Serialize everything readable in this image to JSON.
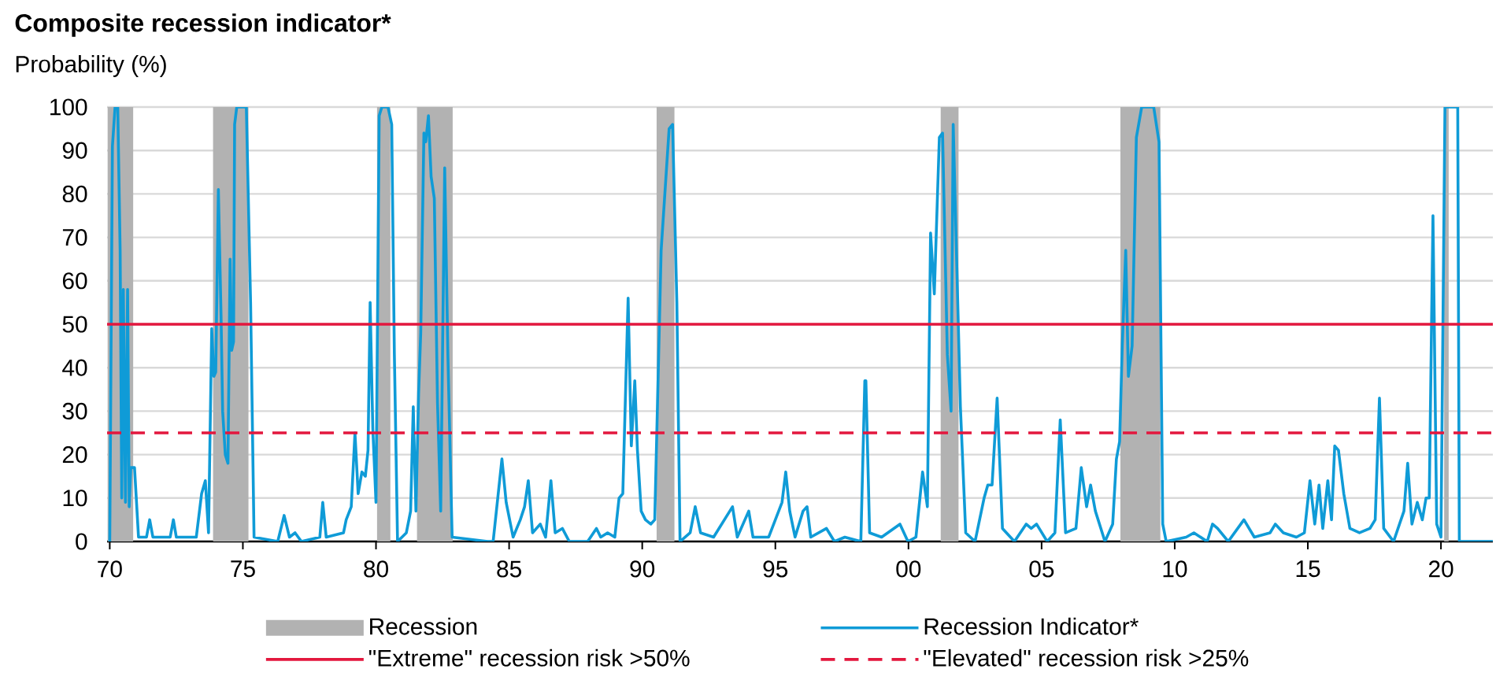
{
  "chart_data": {
    "type": "line",
    "title": "Composite recession indicator*",
    "ylabel": "Probability (%)",
    "xlim": [
      1969.9,
      2021.95
    ],
    "xticks": [
      {
        "value": 1970,
        "label": "70"
      },
      {
        "value": 1975,
        "label": "75"
      },
      {
        "value": 1980,
        "label": "80"
      },
      {
        "value": 1985,
        "label": "85"
      },
      {
        "value": 1990,
        "label": "90"
      },
      {
        "value": 1995,
        "label": "95"
      },
      {
        "value": 2000,
        "label": "00"
      },
      {
        "value": 2005,
        "label": "05"
      },
      {
        "value": 2010,
        "label": "10"
      },
      {
        "value": 2015,
        "label": "15"
      },
      {
        "value": 2020,
        "label": "20"
      }
    ],
    "ylim": [
      0,
      100
    ],
    "yticks": [
      0,
      10,
      20,
      30,
      40,
      50,
      60,
      70,
      80,
      90,
      100
    ],
    "grid": "y",
    "legend": "bottom",
    "bands": [
      {
        "axis": "x",
        "from": 1969.92,
        "to": 1970.88,
        "label": "Recession",
        "color": "#b2b2b2"
      },
      {
        "axis": "x",
        "from": 1973.88,
        "to": 1975.21,
        "color": "#b2b2b2"
      },
      {
        "axis": "x",
        "from": 1980.04,
        "to": 1980.54,
        "color": "#b2b2b2"
      },
      {
        "axis": "x",
        "from": 1981.54,
        "to": 1982.88,
        "color": "#b2b2b2"
      },
      {
        "axis": "x",
        "from": 1990.54,
        "to": 1991.21,
        "color": "#b2b2b2"
      },
      {
        "axis": "x",
        "from": 2001.21,
        "to": 2001.88,
        "color": "#b2b2b2"
      },
      {
        "axis": "x",
        "from": 2007.96,
        "to": 2009.46,
        "color": "#b2b2b2"
      },
      {
        "axis": "x",
        "from": 2020.12,
        "to": 2020.29,
        "color": "#b2b2b2"
      }
    ],
    "series": [
      {
        "name": "Recession Indicator*",
        "color": "#0f9bd7",
        "x": [
          1970.0,
          1970.1,
          1970.2,
          1970.3,
          1970.39,
          1970.45,
          1970.51,
          1970.59,
          1970.67,
          1970.73,
          1970.79,
          1970.93,
          1971.08,
          1971.38,
          1971.5,
          1971.62,
          1972.27,
          1972.39,
          1972.5,
          1973.25,
          1973.45,
          1973.59,
          1973.71,
          1973.83,
          1973.91,
          1973.98,
          1974.08,
          1974.18,
          1974.24,
          1974.34,
          1974.44,
          1974.52,
          1974.58,
          1974.65,
          1974.69,
          1974.77,
          1975.13,
          1975.29,
          1975.42,
          1976.31,
          1976.55,
          1976.75,
          1976.96,
          1977.2,
          1977.89,
          1978.0,
          1978.13,
          1978.78,
          1978.88,
          1979.07,
          1979.21,
          1979.33,
          1979.47,
          1979.6,
          1979.7,
          1979.78,
          1979.88,
          1980.0,
          1980.12,
          1980.22,
          1980.45,
          1980.59,
          1980.69,
          1980.81,
          1981.14,
          1981.3,
          1981.4,
          1981.5,
          1981.6,
          1981.68,
          1981.8,
          1981.87,
          1981.97,
          1982.07,
          1982.19,
          1982.31,
          1982.43,
          1982.58,
          1982.7,
          1982.86,
          1984.2,
          1984.4,
          1984.73,
          1984.89,
          1985.15,
          1985.42,
          1985.58,
          1985.72,
          1985.88,
          1986.17,
          1986.37,
          1986.57,
          1986.73,
          1987.0,
          1987.26,
          1987.95,
          1988.28,
          1988.44,
          1988.7,
          1988.97,
          1989.13,
          1989.27,
          1989.47,
          1989.59,
          1989.72,
          1989.82,
          1989.96,
          1990.12,
          1990.32,
          1990.47,
          1990.71,
          1991.01,
          1991.14,
          1991.3,
          1991.42,
          1991.8,
          1991.99,
          1992.19,
          1992.68,
          1993.39,
          1993.57,
          1994.0,
          1994.16,
          1994.75,
          1995.25,
          1995.39,
          1995.54,
          1995.74,
          1996.04,
          1996.19,
          1996.33,
          1996.92,
          1997.22,
          1997.61,
          1998.21,
          1998.36,
          1998.4,
          1998.54,
          1998.99,
          1999.68,
          1999.98,
          2000.28,
          2000.53,
          2000.71,
          2000.83,
          2000.97,
          2001.16,
          2001.28,
          2001.46,
          2001.6,
          2001.68,
          2001.95,
          2002.15,
          2002.5,
          2002.84,
          2002.98,
          2003.14,
          2003.33,
          2003.53,
          2003.98,
          2004.42,
          2004.61,
          2004.81,
          2005.21,
          2005.5,
          2005.7,
          2005.9,
          2006.29,
          2006.49,
          2006.69,
          2006.84,
          2007.02,
          2007.38,
          2007.67,
          2007.81,
          2007.93,
          2008.03,
          2008.16,
          2008.26,
          2008.4,
          2008.56,
          2008.76,
          2009.21,
          2009.41,
          2009.55,
          2009.68,
          2010.43,
          2010.72,
          2011.22,
          2011.42,
          2011.61,
          2012.01,
          2012.6,
          2012.99,
          2013.58,
          2013.78,
          2014.08,
          2014.57,
          2014.87,
          2015.08,
          2015.26,
          2015.42,
          2015.56,
          2015.75,
          2015.89,
          2016.01,
          2016.15,
          2016.35,
          2016.58,
          2016.94,
          2017.33,
          2017.53,
          2017.69,
          2017.85,
          2018.22,
          2018.61,
          2018.75,
          2018.91,
          2019.11,
          2019.3,
          2019.44,
          2019.56,
          2019.7,
          2019.84,
          2020.0,
          2020.15,
          2020.63,
          2020.69,
          2021.95
        ],
        "values": [
          0,
          91,
          100,
          100,
          67,
          10,
          58,
          9,
          58,
          8,
          17,
          17,
          1,
          1,
          5,
          1,
          1,
          5,
          1,
          1,
          11,
          14,
          2,
          49,
          38,
          39,
          81,
          52,
          30,
          20,
          18,
          65,
          44,
          46,
          96,
          100,
          100,
          55,
          1,
          0,
          6,
          1,
          2,
          0,
          1,
          9,
          1,
          2,
          5,
          8,
          25,
          11,
          16,
          15,
          21,
          55,
          26,
          9,
          98,
          100,
          100,
          96,
          43,
          0,
          2,
          7,
          31,
          7,
          34,
          48,
          94,
          92,
          98,
          84,
          79,
          32,
          7,
          86,
          43,
          1,
          0,
          0,
          19,
          9,
          1,
          5,
          8,
          14,
          2,
          4,
          1,
          14,
          2,
          3,
          0,
          0,
          3,
          1,
          2,
          1,
          10,
          11,
          56,
          22,
          37,
          21,
          7,
          5,
          4,
          5,
          67,
          95,
          96,
          55,
          0,
          2,
          8,
          2,
          1,
          8,
          1,
          7,
          1,
          1,
          9,
          16,
          7,
          1,
          7,
          8,
          1,
          3,
          0,
          1,
          0,
          37,
          37,
          2,
          1,
          4,
          0,
          1,
          16,
          8,
          71,
          57,
          93,
          94,
          43,
          30,
          96,
          31,
          2,
          0,
          10,
          13,
          13,
          33,
          3,
          0,
          4,
          3,
          4,
          0,
          2,
          28,
          2,
          3,
          17,
          8,
          13,
          7,
          0,
          4,
          19,
          23,
          45,
          67,
          38,
          45,
          93,
          100,
          100,
          92,
          4,
          0,
          1,
          2,
          0,
          4,
          3,
          0,
          5,
          1,
          2,
          4,
          2,
          1,
          2,
          14,
          4,
          13,
          3,
          14,
          5,
          22,
          21,
          11,
          3,
          2,
          3,
          5,
          33,
          3,
          0,
          7,
          18,
          4,
          9,
          5,
          10,
          10,
          75,
          4,
          1,
          100,
          100,
          0,
          0
        ]
      }
    ],
    "ref_lines": [
      {
        "axis": "y",
        "value": 50,
        "label": "\"Extreme\" recession risk >50%",
        "color": "#e3173e",
        "line_style": "solid"
      },
      {
        "axis": "y",
        "value": 25,
        "label": "\"Elevated\" recession risk >25%",
        "color": "#e3173e",
        "line_style": "dashed"
      }
    ]
  }
}
